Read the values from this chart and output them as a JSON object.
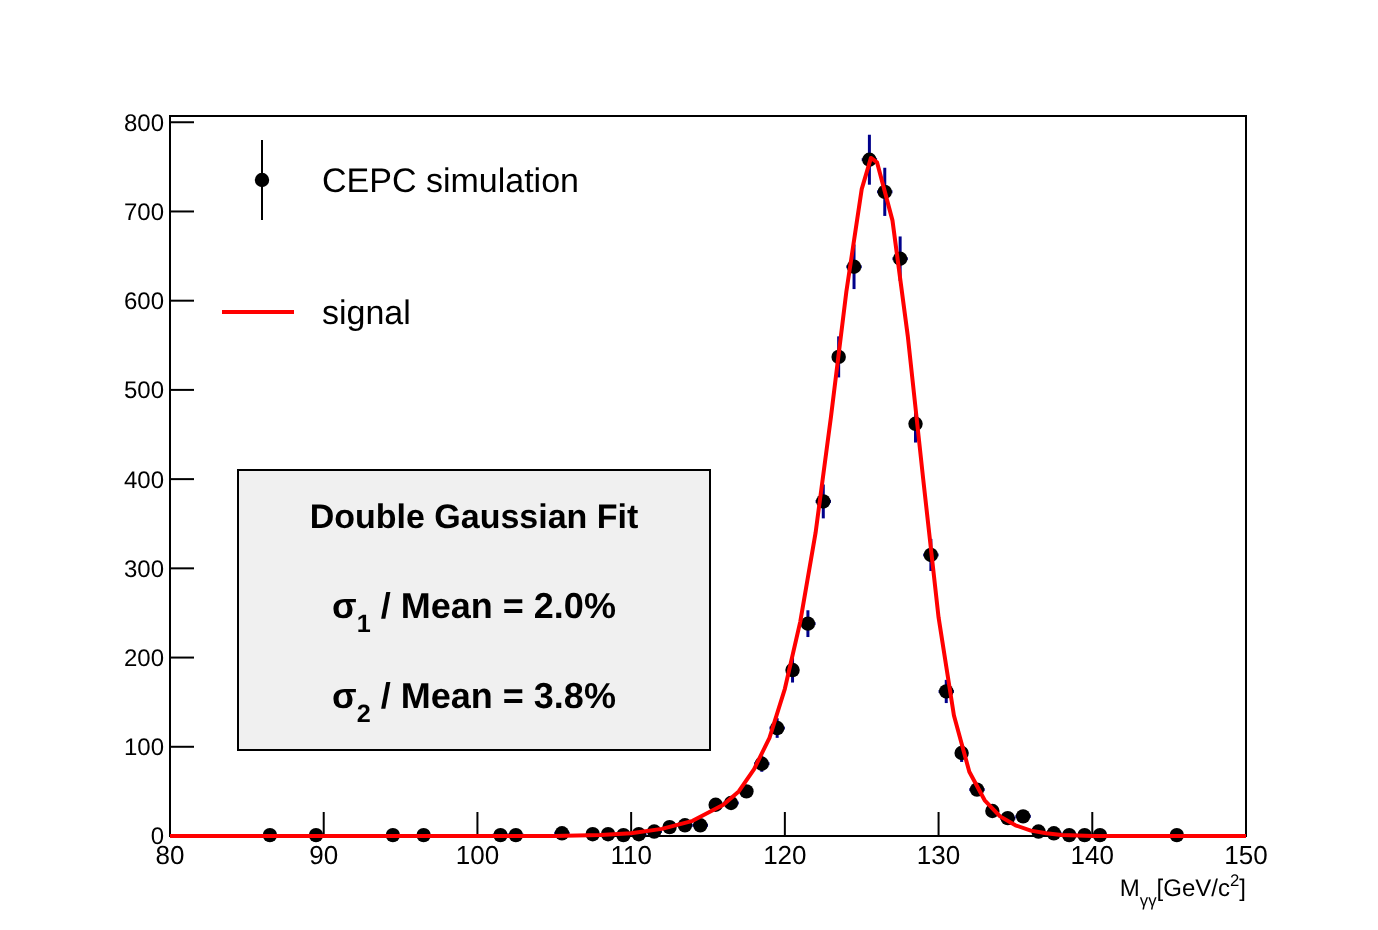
{
  "chart_data": {
    "type": "scatter",
    "xlabel": "M$_{γγ}$[GeV/c$^{2}$]",
    "xlim": [
      80,
      150
    ],
    "xticks": [
      80,
      90,
      100,
      110,
      120,
      130,
      140,
      150
    ],
    "ylim": [
      0,
      807
    ],
    "yticks": [
      0,
      100,
      200,
      300,
      400,
      500,
      600,
      700,
      800
    ],
    "legend": "top left",
    "grid": false,
    "annotations": [
      "Double Gaussian Fit",
      "σ$_{1}$ / Mean = 2.0%",
      "σ$_{2}$ / Mean = 3.8%"
    ],
    "series": [
      {
        "name": "CEPC simulation",
        "color": "#000000",
        "marker": "circle",
        "x": [
          86.5,
          89.5,
          94.5,
          96.5,
          101.5,
          102.5,
          105.5,
          107.5,
          108.5,
          109.5,
          110.5,
          111.5,
          112.5,
          113.5,
          114.5,
          115.5,
          116.5,
          117.5,
          118.5,
          119.5,
          120.5,
          121.5,
          122.5,
          123.5,
          124.5,
          125.5,
          126.5,
          127.5,
          128.5,
          129.5,
          130.5,
          131.5,
          132.5,
          133.5,
          134.5,
          135.5,
          136.5,
          137.5,
          138.5,
          139.5,
          140.5,
          145.5
        ],
        "values": [
          1,
          1,
          1,
          1,
          1,
          1,
          3,
          2,
          2,
          1,
          2,
          5,
          10,
          12,
          12,
          35,
          37,
          50,
          81,
          121,
          186,
          238,
          375,
          537,
          638,
          758,
          722,
          647,
          462,
          315,
          162,
          93,
          52,
          28,
          20,
          22,
          5,
          3,
          1,
          1,
          1,
          1
        ],
        "errors": [
          null,
          null,
          null,
          null,
          null,
          null,
          null,
          null,
          null,
          null,
          null,
          null,
          null,
          null,
          null,
          null,
          null,
          null,
          9,
          11,
          14,
          15,
          19,
          23,
          25,
          28,
          27,
          25,
          21,
          18,
          13,
          10,
          null,
          null,
          null,
          null,
          null,
          null,
          null,
          null,
          null,
          null
        ],
        "xerrors": [
          null,
          null,
          null,
          null,
          0.5,
          0.5,
          0.5,
          null,
          null,
          null,
          0.5,
          0.5,
          null,
          0.5,
          0.5,
          null,
          0.5,
          null,
          0.5,
          0.5,
          null,
          0.5,
          0.5,
          null,
          0.5,
          0.5,
          0.5,
          0.5,
          null,
          0.5,
          0.5,
          null,
          0.5,
          null,
          0.5,
          0.5,
          null,
          0.5,
          0.5,
          null,
          null,
          null
        ]
      },
      {
        "name": "signal",
        "type": "line",
        "color": "#ff0000",
        "line_style": "solid",
        "marker": "none",
        "x": [
          80,
          100,
          105,
          108,
          110,
          112,
          114,
          116,
          117,
          118,
          119,
          120,
          121,
          122,
          123,
          124,
          125,
          125.6,
          126,
          127,
          128,
          129,
          130,
          131,
          132,
          133,
          134,
          135,
          136,
          137,
          138,
          140,
          150
        ],
        "values": [
          0,
          0,
          0,
          1,
          3,
          8,
          17,
          35,
          50,
          75,
          110,
          165,
          240,
          340,
          470,
          610,
          725,
          760,
          755,
          690,
          560,
          400,
          245,
          135,
          72,
          40,
          22,
          12,
          6,
          3,
          1,
          0,
          0
        ]
      }
    ]
  }
}
